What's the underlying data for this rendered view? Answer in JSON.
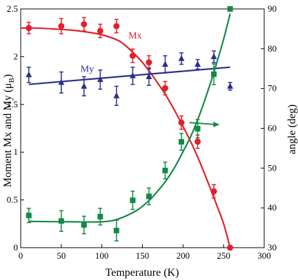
{
  "chart_data": {
    "type": "scatter",
    "xlabel": "Temperature (K)",
    "ylabel": "Moment Mx and My (μB)",
    "ylabel_main": "Moment Mx and My (μ",
    "ylabel_sub": "B",
    "ylabel_close": ")",
    "y2label": "angle (deg)",
    "xlim": [
      0,
      300
    ],
    "ylim": [
      0,
      2.5
    ],
    "y2lim": [
      30,
      90
    ],
    "xticks": [
      0,
      50,
      100,
      150,
      200,
      250,
      300
    ],
    "yticks": [
      0,
      0.5,
      1,
      1.5,
      2,
      2.5
    ],
    "y2ticks": [
      30,
      40,
      50,
      60,
      70,
      80,
      90
    ],
    "xtick_labels": [
      "0",
      "50",
      "100",
      "150",
      "200",
      "250",
      "300"
    ],
    "ytick_labels": [
      "0",
      "0.5",
      "1",
      "1.5",
      "2",
      "2.5"
    ],
    "y2tick_labels": [
      "30",
      "40",
      "50",
      "60",
      "70",
      "80",
      "90"
    ],
    "grid": false,
    "series": [
      {
        "name": "Mx",
        "axis": "left",
        "color": "#e0202a",
        "marker": "circle",
        "x": [
          10,
          50,
          78,
          98,
          118,
          138,
          158,
          178,
          198,
          218,
          238,
          258
        ],
        "y": [
          2.3,
          2.32,
          2.34,
          2.27,
          2.32,
          2.01,
          1.94,
          1.67,
          1.31,
          1.11,
          0.59,
          0.0
        ],
        "err": [
          0.06,
          0.08,
          0.07,
          0.07,
          0.07,
          0.07,
          0.07,
          0.07,
          0.07,
          0.07,
          0.07,
          0.0
        ],
        "fit": {
          "x": [
            0,
            20,
            40,
            60,
            80,
            100,
            120,
            130,
            140,
            150,
            160,
            170,
            180,
            190,
            200,
            210,
            220,
            230,
            240,
            250,
            258
          ],
          "y": [
            2.3,
            2.3,
            2.29,
            2.28,
            2.26,
            2.23,
            2.17,
            2.11,
            2.03,
            1.94,
            1.83,
            1.71,
            1.58,
            1.43,
            1.27,
            1.1,
            0.91,
            0.7,
            0.48,
            0.25,
            0.0
          ]
        }
      },
      {
        "name": "My",
        "axis": "left",
        "color": "#2a2f8c",
        "marker": "triangle",
        "x": [
          10,
          50,
          78,
          98,
          118,
          138,
          158,
          178,
          198,
          218,
          238,
          258
        ],
        "y": [
          1.81,
          1.73,
          1.69,
          1.76,
          1.59,
          1.8,
          1.79,
          1.92,
          1.98,
          1.92,
          2.0,
          1.69
        ],
        "err": [
          0.08,
          0.11,
          0.1,
          0.1,
          0.1,
          0.09,
          0.09,
          0.09,
          0.06,
          0.05,
          0.06,
          0.04
        ],
        "fit": {
          "x": [
            10,
            258
          ],
          "y": [
            1.71,
            1.89
          ]
        }
      },
      {
        "name": "",
        "axis": "right",
        "color": "#128a45",
        "marker": "square",
        "x": [
          10,
          50,
          78,
          98,
          118,
          138,
          158,
          178,
          198,
          218,
          238,
          258
        ],
        "y": [
          38.1,
          36.7,
          35.7,
          37.8,
          34.3,
          41.9,
          42.9,
          49.4,
          56.6,
          59.9,
          73.6,
          90.0
        ],
        "err": [
          1.8,
          2.6,
          2.2,
          2.1,
          2.6,
          2.3,
          2.1,
          2.1,
          2.1,
          2.3,
          2.6,
          0.0
        ],
        "fit": {
          "x": [
            10,
            60,
            100,
            120,
            140,
            150,
            160,
            170,
            180,
            190,
            200,
            210,
            220,
            230,
            240,
            250,
            258
          ],
          "y": [
            36.6,
            36.5,
            36.5,
            37.2,
            39.0,
            40.4,
            42.2,
            44.5,
            47.1,
            50.3,
            54.1,
            58.2,
            63.2,
            69.0,
            75.4,
            82.4,
            88.8
          ]
        }
      }
    ],
    "labels": [
      {
        "text": "Mx",
        "x": 141,
        "y": 2.19,
        "color": "#e0202a"
      },
      {
        "text": "My",
        "x": 82,
        "y": 1.84,
        "color": "#2a2f8c"
      }
    ],
    "arrow": {
      "x1": 208,
      "y1": 1.31,
      "x2": 245,
      "y2": 1.29,
      "color": "#128a45"
    }
  }
}
